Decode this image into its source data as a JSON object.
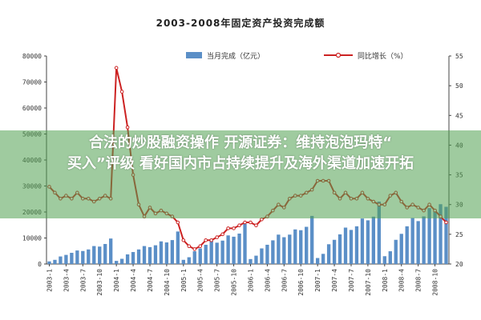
{
  "chart_data": {
    "type": "bar",
    "title": "2003-2008年固定资产投资完成额",
    "legend": [
      {
        "name": "当月完成（亿元）",
        "kind": "bar"
      },
      {
        "name": "同比增长（%）",
        "kind": "line"
      }
    ],
    "x": [
      "2003-1",
      "2003-2",
      "2003-3",
      "2003-4",
      "2003-5",
      "2003-6",
      "2003-7",
      "2003-8",
      "2003-9",
      "2003-10",
      "2003-11",
      "2003-12",
      "2004-1",
      "2004-2",
      "2004-3",
      "2004-4",
      "2004-5",
      "2004-6",
      "2004-7",
      "2004-8",
      "2004-9",
      "2004-10",
      "2004-11",
      "2004-12",
      "2005-1",
      "2005-2",
      "2005-3",
      "2005-4",
      "2005-5",
      "2005-6",
      "2005-7",
      "2005-8",
      "2005-9",
      "2005-10",
      "2005-11",
      "2005-12",
      "2006-1",
      "2006-2",
      "2006-3",
      "2006-4",
      "2006-5",
      "2006-6",
      "2006-7",
      "2006-8",
      "2006-9",
      "2006-10",
      "2006-11",
      "2006-12",
      "2007-1",
      "2007-2",
      "2007-3",
      "2007-4",
      "2007-5",
      "2007-6",
      "2007-7",
      "2007-8",
      "2007-9",
      "2007-10",
      "2007-11",
      "2007-12",
      "2008-1",
      "2008-2",
      "2008-3",
      "2008-4",
      "2008-5",
      "2008-6",
      "2008-7",
      "2008-8",
      "2008-9",
      "2008-10",
      "2008-11",
      "2008-12"
    ],
    "xtick_labels": [
      "2003-1",
      "2003-4",
      "2003-7",
      "2003-10",
      "2004-1",
      "2004-4",
      "2004-7",
      "2004-10",
      "2005-1",
      "2005-4",
      "2005-7",
      "2005-10",
      "2006-1",
      "2006-4",
      "2006-7",
      "2006-10",
      "2007-1",
      "2007-4",
      "2007-7",
      "2007-10",
      "2008-1",
      "2008-4",
      "2008-7",
      "2008-10"
    ],
    "series": [
      {
        "name": "当月完成（亿元）",
        "axis": "left",
        "color": "#5b8fc7",
        "values": [
          1000,
          1600,
          2900,
          3500,
          4300,
          5200,
          5000,
          5600,
          6900,
          6700,
          7700,
          9800,
          1200,
          2000,
          3700,
          4600,
          5600,
          6900,
          6500,
          7200,
          8700,
          8300,
          9200,
          12500,
          1600,
          2600,
          4900,
          6000,
          7400,
          9100,
          8200,
          9000,
          11000,
          10500,
          11700,
          15500,
          1900,
          3200,
          6000,
          7400,
          9100,
          11300,
          10300,
          11300,
          13300,
          13000,
          14300,
          18500,
          2300,
          3900,
          7600,
          9300,
          11400,
          14000,
          13100,
          14500,
          17500,
          16800,
          18200,
          24000,
          3000,
          4900,
          9300,
          11600,
          14500,
          17700,
          16500,
          18300,
          21500,
          21000,
          23000,
          22000
        ]
      },
      {
        "name": "同比增长（%）",
        "axis": "right",
        "color": "#cc2222",
        "values": [
          33,
          32,
          31,
          31.5,
          31,
          32,
          31,
          31,
          30.5,
          31,
          31.5,
          31,
          53,
          49,
          43,
          35,
          30,
          28,
          29.5,
          28.5,
          29,
          28.5,
          28,
          27,
          24,
          23,
          22.5,
          23,
          24,
          24,
          24.5,
          25,
          26,
          26,
          26.5,
          27,
          27,
          26.5,
          27.5,
          28,
          29,
          30,
          29.5,
          31,
          31.5,
          31.5,
          32,
          32.5,
          34,
          34,
          34,
          32,
          31,
          32,
          31,
          31,
          32,
          31,
          30.5,
          30,
          30,
          31.5,
          32,
          30.5,
          29.5,
          30,
          29.5,
          29,
          30,
          29,
          28,
          27
        ]
      }
    ],
    "y_left": {
      "min": 0,
      "max": 80000,
      "ticks": [
        "0",
        "10000",
        "20000",
        "30000",
        "40000",
        "50000",
        "60000",
        "70000",
        "80000"
      ]
    },
    "y_right": {
      "min": 20,
      "max": 55,
      "ticks": [
        "20",
        "25",
        "30",
        "35",
        "40",
        "45",
        "50",
        "55"
      ]
    },
    "grid": false,
    "legend_position": "top"
  },
  "overlay": {
    "line1": "合法的炒股融资操作 开源证券：维持泡泡玛特“",
    "line2": "买入”评级 看好国内市占持续提升及海外渠道加速开拓"
  }
}
